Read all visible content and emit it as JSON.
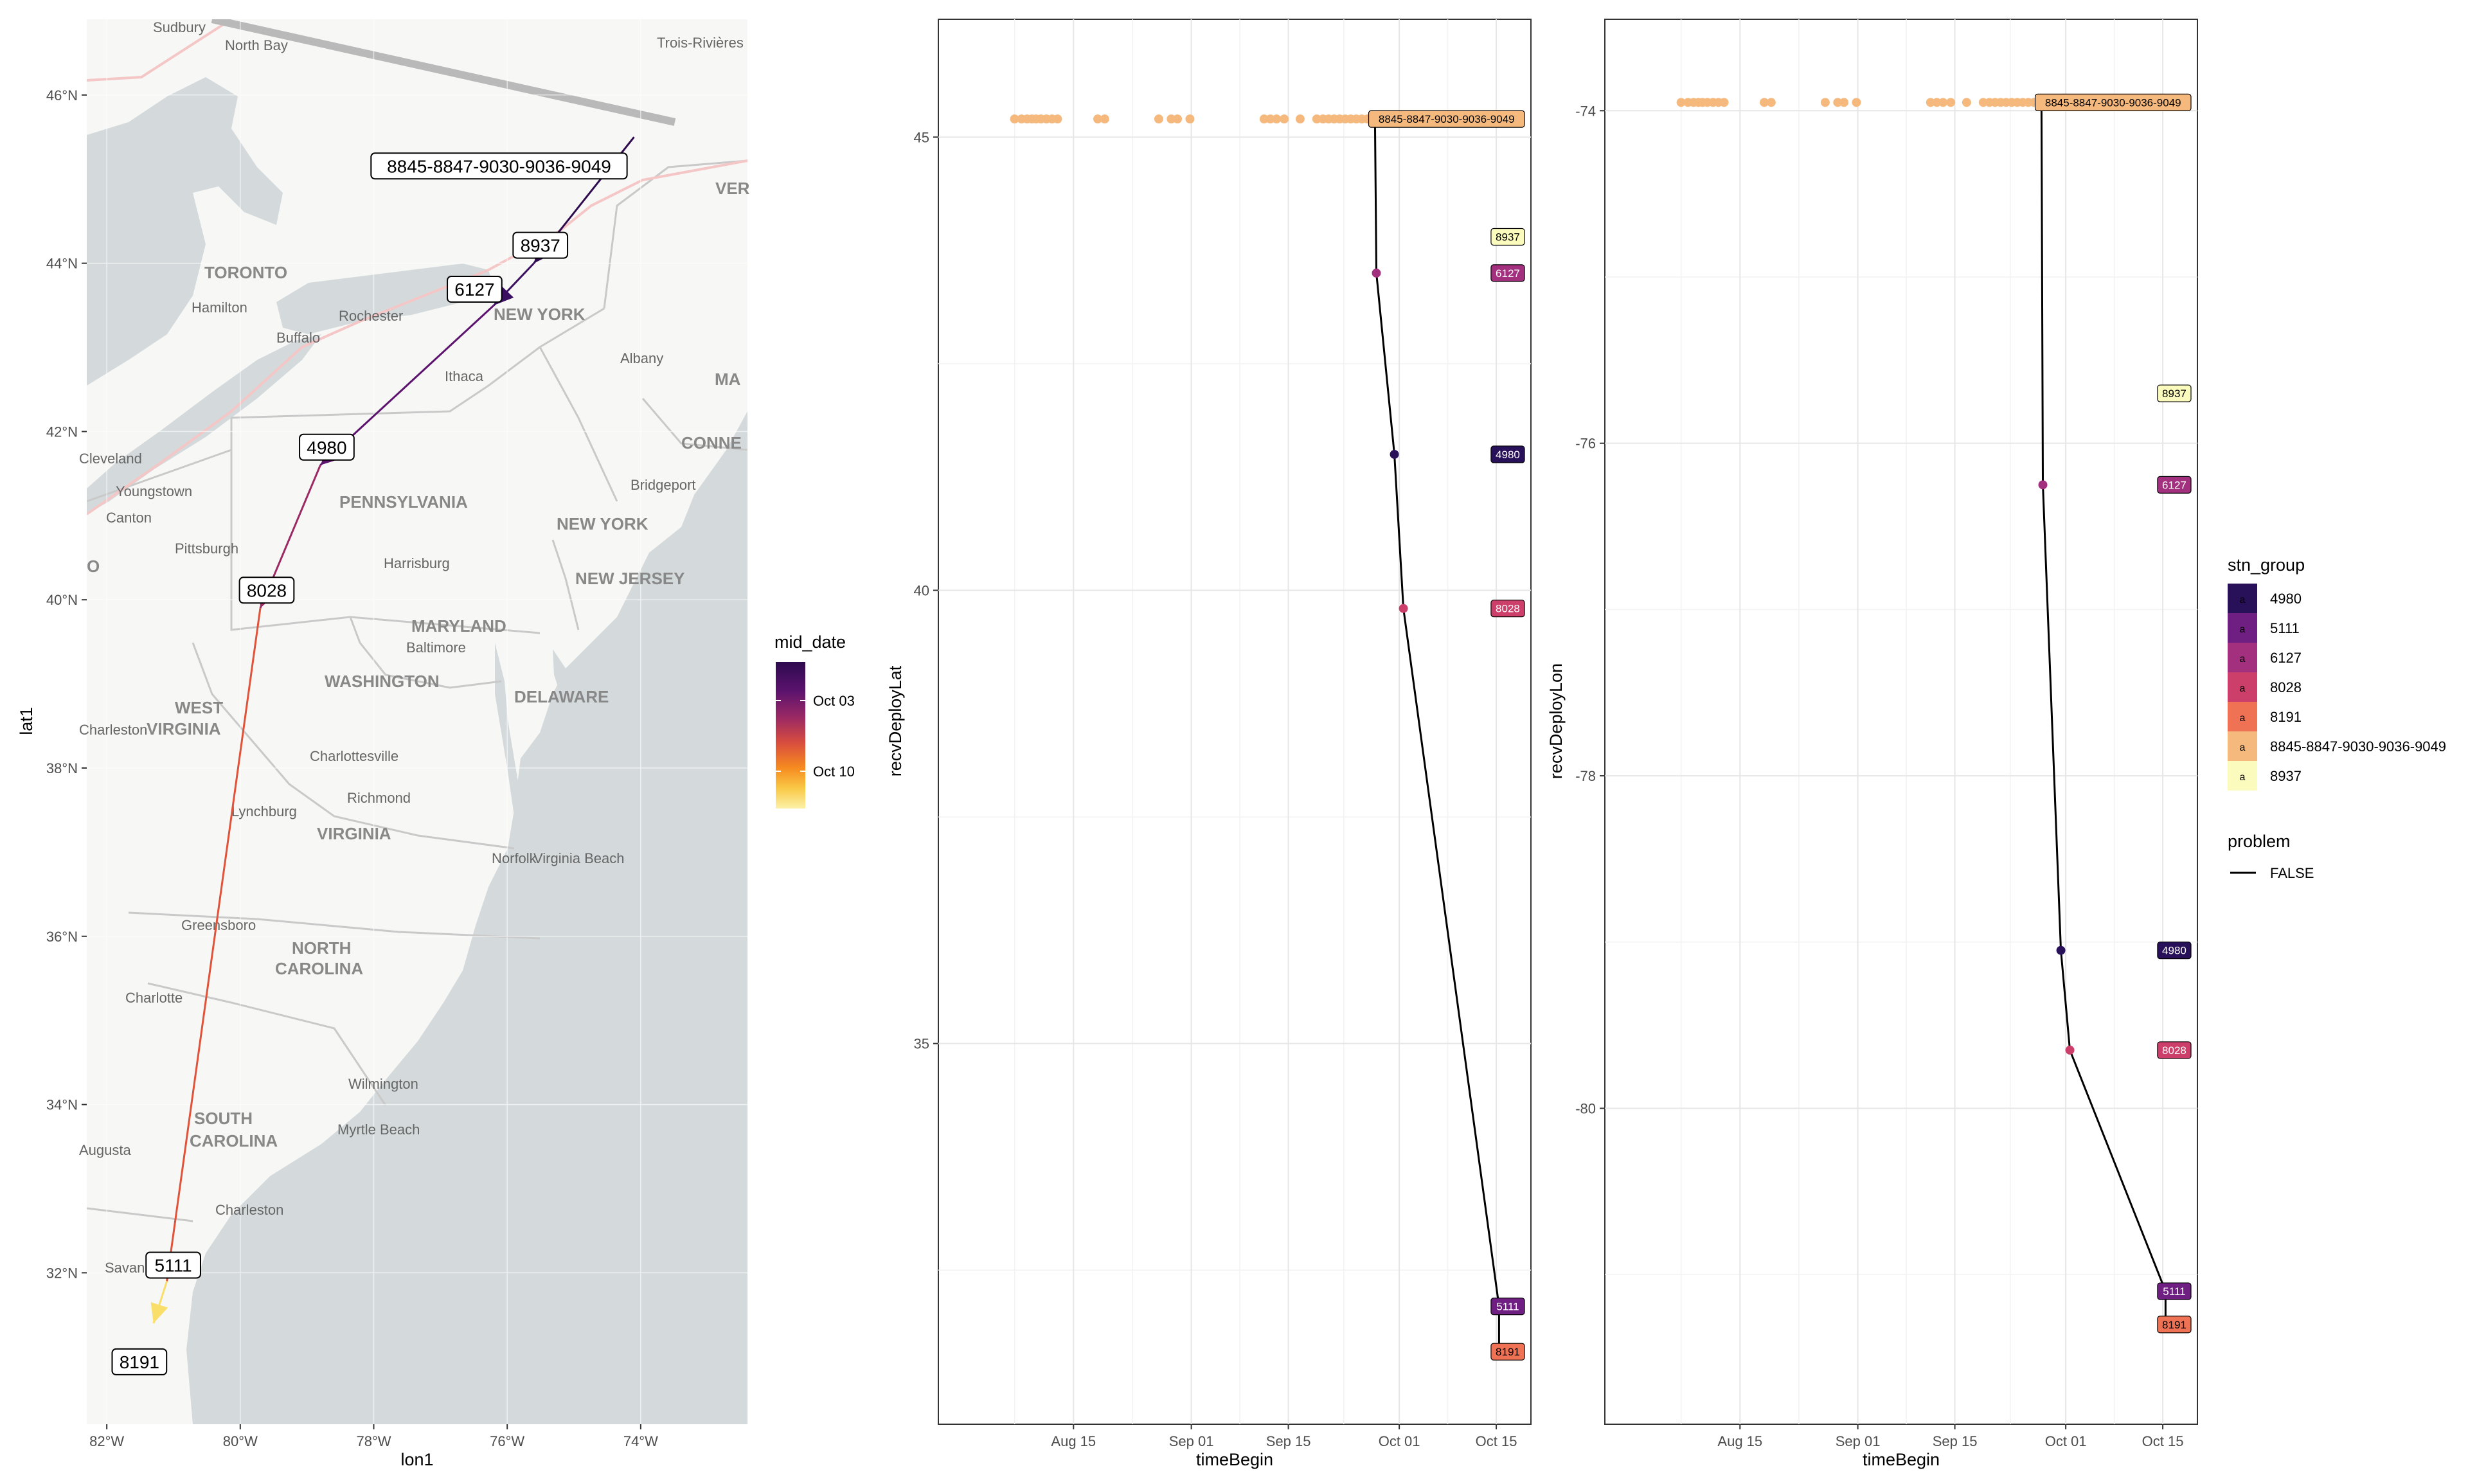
{
  "colors": {
    "panel_bg": "#ffffff",
    "grid": "#ebebeb",
    "axis_text": "#4d4d4d",
    "path_black": "#000000",
    "land": "#f7f7f5",
    "water": "#d4dadc",
    "border": "#c9c9c9"
  },
  "map_panel": {
    "x_title": "lon1",
    "y_title": "lat1",
    "x_ticks": [
      "82°W",
      "80°W",
      "78°W",
      "76°W",
      "74°W"
    ],
    "y_ticks": [
      "46°N",
      "44°N",
      "42°N",
      "40°N",
      "38°N",
      "36°N",
      "34°N",
      "32°N"
    ],
    "place_labels": [
      "Sudbury",
      "North Bay",
      "Trois-Rivières",
      "TORONTO",
      "Hamilton",
      "Buffalo",
      "Rochester",
      "NEW YORK",
      "Ithaca",
      "Albany",
      "VER",
      "MA",
      "CONNE",
      "Cleveland",
      "Youngstown",
      "Canton",
      "Pittsburgh",
      "PENNSYLVANIA",
      "Bridgeport",
      "NEW YORK",
      "Harrisburg",
      "NEW JERSEY",
      "MARYLAND",
      "Baltimore",
      "WASHINGTON",
      "DELAWARE",
      "WEST",
      "VIRGINIA",
      "Charleston",
      "Charlottesville",
      "Richmond",
      "Lynchburg",
      "VIRGINIA",
      "Norfolk",
      "Virginia Beach",
      "Greensboro",
      "NORTH",
      "CAROLINA",
      "Charlotte",
      "Wilmington",
      "SOUTH",
      "CAROLINA",
      "Myrtle Beach",
      "Augusta",
      "Charleston",
      "Savannah",
      "O"
    ],
    "legend": {
      "title": "mid_date",
      "labels": [
        "Oct 03",
        "Oct 10"
      ],
      "gradient": [
        "#2d0a4e",
        "#5c136e",
        "#9b2964",
        "#d84d3e",
        "#f68a20",
        "#f9c845",
        "#fcf1a8"
      ]
    },
    "chart_data": {
      "type": "path-map",
      "x": "lon1",
      "y": "lat1",
      "xlim": [
        -82.3,
        -72.4
      ],
      "ylim": [
        30.2,
        46.9
      ],
      "points": [
        {
          "label": "8845-8847-9030-9036-9049",
          "lon": -74.1,
          "lat": 45.5,
          "color": "#2d0a4e"
        },
        {
          "label": "8937",
          "lon": -75.6,
          "lat": 44.0,
          "color": "#2d0a4e"
        },
        {
          "label": "6127",
          "lon": -76.2,
          "lat": 43.5,
          "color": "#3b0f60"
        },
        {
          "label": "4980",
          "lon": -78.8,
          "lat": 41.6,
          "color": "#5c136e"
        },
        {
          "label": "8028",
          "lon": -79.7,
          "lat": 39.9,
          "color": "#9b2964"
        },
        {
          "label": "5111",
          "lon": -81.1,
          "lat": 31.9,
          "color": "#e0533a"
        },
        {
          "label": "8191",
          "lon": -81.3,
          "lat": 31.4,
          "color": "#f9de6a"
        }
      ]
    }
  },
  "lat_panel": {
    "x_title": "timeBegin",
    "y_title": "recvDeployLat",
    "x_ticks": [
      "Aug 15",
      "Sep 01",
      "Sep 15",
      "Oct 01",
      "Oct 15"
    ],
    "y_ticks": [
      "45",
      "40",
      "35"
    ],
    "chart_data": {
      "type": "scatter",
      "x": "timeBegin (days since Aug 1)",
      "y": "recvDeployLat",
      "xlim": [
        -5.5,
        80
      ],
      "ylim": [
        30.8,
        46.3
      ],
      "background_points": {
        "x": [
          5.5,
          6.5,
          7.3,
          8.0,
          8.6,
          9.3,
          10.1,
          10.9,
          11.7,
          17.5,
          18.5,
          26.3,
          28.1,
          29.0,
          30.8,
          41.5,
          42.4,
          43.3,
          44.4,
          46.7,
          49.1,
          50.0,
          50.8,
          51.6,
          52.4,
          53.2,
          54.0,
          54.8,
          55.6,
          56.4,
          57.2
        ],
        "y": 45.2,
        "color": "#f5b97e"
      },
      "labels": [
        {
          "text": "8845-8847-9030-9036-9049",
          "y": 45.2,
          "color": "#f5b97e"
        },
        {
          "text": "8937",
          "y": 43.9,
          "color": "#fcfbbe"
        },
        {
          "text": "6127",
          "y": 43.5,
          "color": "#a3307e"
        },
        {
          "text": "4980",
          "y": 41.5,
          "color": "#29115a"
        },
        {
          "text": "8028",
          "y": 39.8,
          "color": "#cc3f6a"
        },
        {
          "text": "5111",
          "y": 32.1,
          "color": "#6f1f81"
        },
        {
          "text": "8191",
          "y": 31.6,
          "color": "#f07255"
        }
      ],
      "path": [
        {
          "x": 57.5,
          "y": 45.2,
          "color": "#f5b97e"
        },
        {
          "x": 57.7,
          "y": 43.5,
          "color": "#a3307e"
        },
        {
          "x": 60.3,
          "y": 41.5,
          "color": "#29115a"
        },
        {
          "x": 61.6,
          "y": 39.8,
          "color": "#cc3f6a"
        },
        {
          "x": 75.4,
          "y": 32.1,
          "color": "#6f1f81"
        },
        {
          "x": 75.4,
          "y": 31.6,
          "color": "#f07255"
        }
      ]
    }
  },
  "lon_panel": {
    "x_title": "timeBegin",
    "y_title": "recvDeployLon",
    "x_ticks": [
      "Aug 15",
      "Sep 01",
      "Sep 15",
      "Oct 01",
      "Oct 15"
    ],
    "y_ticks": [
      "-74",
      "-76",
      "-78",
      "-80"
    ],
    "chart_data": {
      "type": "scatter",
      "x": "timeBegin (days since Aug 1)",
      "y": "recvDeployLon",
      "xlim": [
        -5.5,
        80
      ],
      "ylim": [
        -81.9,
        -73.45
      ],
      "background_points": {
        "x": [
          5.5,
          6.5,
          7.3,
          8.0,
          8.6,
          9.3,
          10.1,
          10.9,
          11.7,
          17.5,
          18.5,
          26.3,
          28.1,
          29.0,
          30.8,
          41.5,
          42.4,
          43.3,
          44.4,
          46.7,
          49.1,
          50.0,
          50.8,
          51.6,
          52.4,
          53.2,
          54.0,
          54.8,
          55.6,
          56.4,
          57.2
        ],
        "y": -73.95,
        "color": "#f5b97e"
      },
      "labels": [
        {
          "text": "8845-8847-9030-9036-9049",
          "y": -73.95,
          "color": "#f5b97e"
        },
        {
          "text": "8937",
          "y": -75.7,
          "color": "#fcfbbe"
        },
        {
          "text": "6127",
          "y": -76.25,
          "color": "#a3307e"
        },
        {
          "text": "4980",
          "y": -79.05,
          "color": "#29115a"
        },
        {
          "text": "8028",
          "y": -79.65,
          "color": "#cc3f6a"
        },
        {
          "text": "5111",
          "y": -81.1,
          "color": "#6f1f81"
        },
        {
          "text": "8191",
          "y": -81.3,
          "color": "#f07255"
        }
      ],
      "path": [
        {
          "x": 57.5,
          "y": -73.95,
          "color": "#f5b97e"
        },
        {
          "x": 57.7,
          "y": -76.25,
          "color": "#a3307e"
        },
        {
          "x": 60.3,
          "y": -79.05,
          "color": "#29115a"
        },
        {
          "x": 61.6,
          "y": -79.65,
          "color": "#cc3f6a"
        },
        {
          "x": 75.4,
          "y": -81.1,
          "color": "#6f1f81"
        },
        {
          "x": 75.4,
          "y": -81.3,
          "color": "#f07255"
        }
      ]
    }
  },
  "legend_stn": {
    "title": "stn_group",
    "key_glyph": "a",
    "items": [
      {
        "label": "4980",
        "color": "#29115a"
      },
      {
        "label": "5111",
        "color": "#6f1f81"
      },
      {
        "label": "6127",
        "color": "#a3307e"
      },
      {
        "label": "8028",
        "color": "#cc3f6a"
      },
      {
        "label": "8191",
        "color": "#f07255"
      },
      {
        "label": "8845-8847-9030-9036-9049",
        "color": "#f5b97e"
      },
      {
        "label": "8937",
        "color": "#fcfbbe"
      }
    ]
  },
  "legend_problem": {
    "title": "problem",
    "label": "FALSE"
  }
}
